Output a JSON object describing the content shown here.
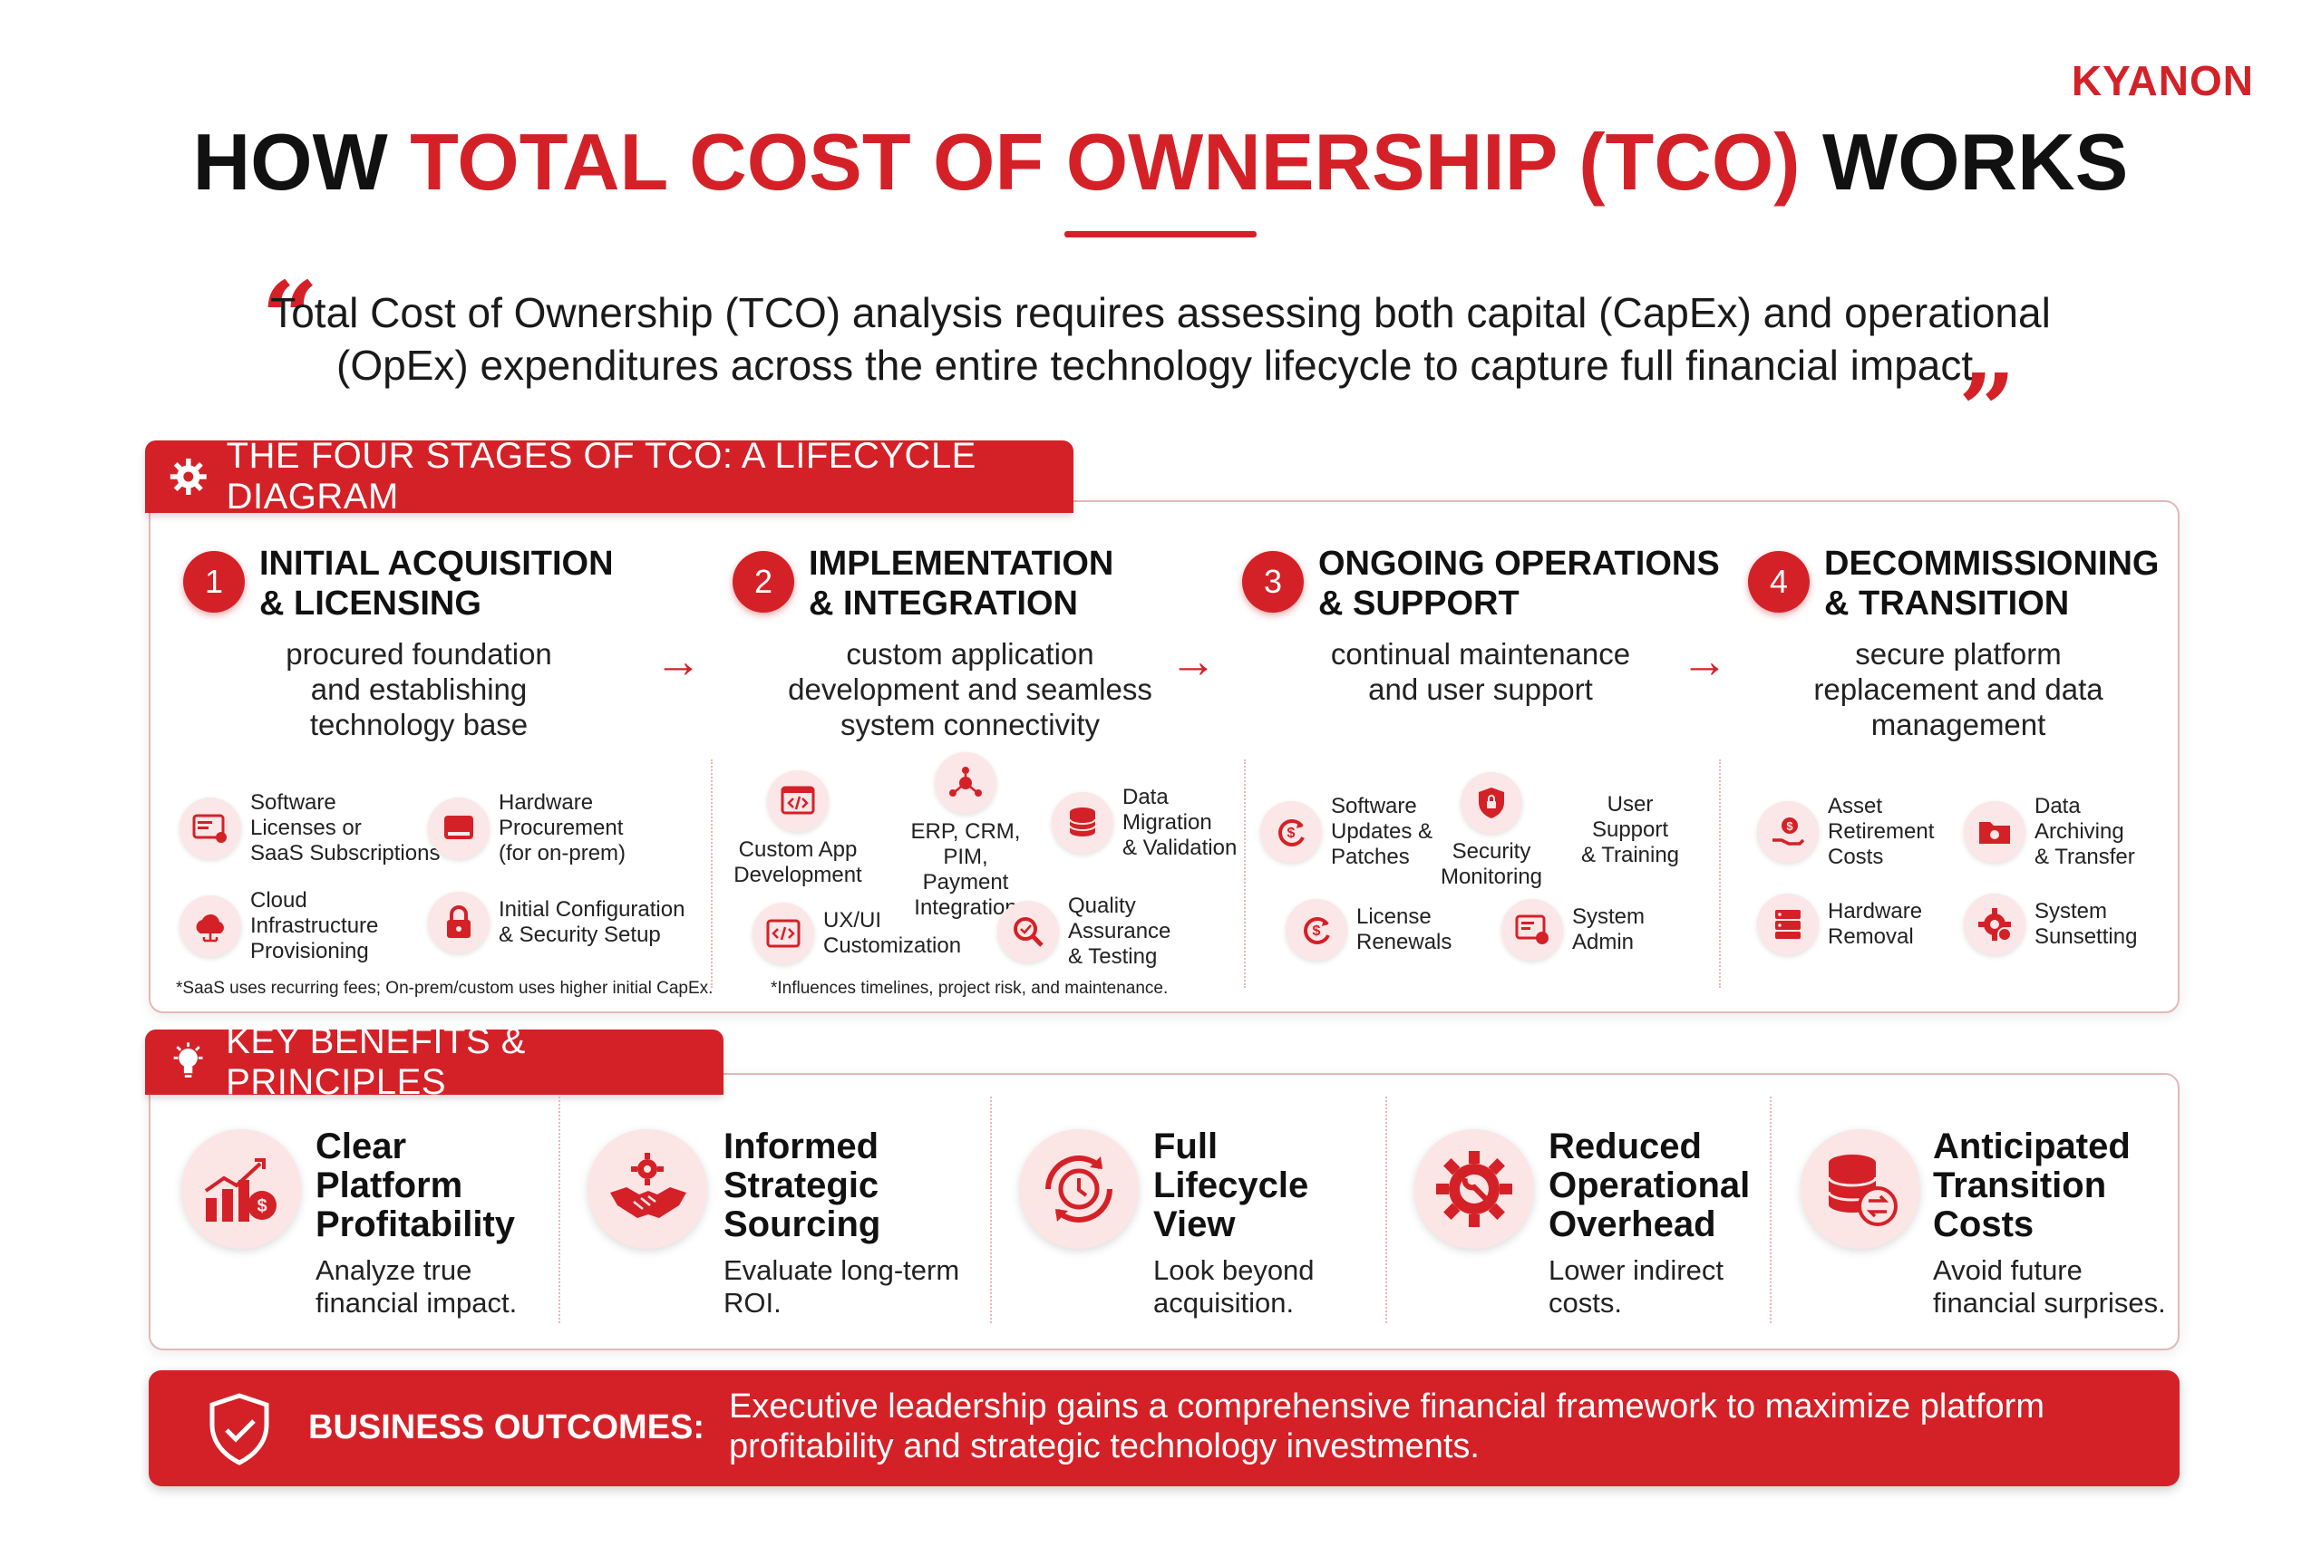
{
  "logo": "KYANON",
  "title": {
    "part1": "HOW ",
    "highlight": "TOTAL COST OF OWNERSHIP (TCO)",
    "part2": " WORKS"
  },
  "quote": "Total Cost of Ownership (TCO) analysis requires assessing both capital (CapEx) and operational (OpEx) expenditures across the entire technology lifecycle to capture full financial impact.",
  "lifecycle": {
    "heading": "THE FOUR STAGES OF TCO: A LIFECYCLE DIAGRAM",
    "stages": [
      {
        "number": "1",
        "title": "INITIAL ACQUISITION\n& LICENSING",
        "desc": "procured foundation\nand establishing\ntechnology base",
        "items": [
          {
            "icon": "license-icon",
            "label": "Software\nLicenses or\nSaaS Subscriptions"
          },
          {
            "icon": "hardware-icon",
            "label": "Hardware\nProcurement\n(for on-prem)"
          },
          {
            "icon": "cloud-icon",
            "label": "Cloud\nInfrastructure\nProvisioning"
          },
          {
            "icon": "lock-icon",
            "label": "Initial Configuration\n& Security Setup"
          }
        ],
        "note": "*SaaS uses recurring fees; On-prem/custom uses higher initial CapEx."
      },
      {
        "number": "2",
        "title": "IMPLEMENTATION\n& INTEGRATION",
        "desc": "custom application\ndevelopment and seamless\nsystem connectivity",
        "items": [
          {
            "icon": "code-icon",
            "label": "Custom App\nDevelopment"
          },
          {
            "icon": "network-icon",
            "label": "ERP, CRM,\nPIM, Payment\nIntegration"
          },
          {
            "icon": "database-icon",
            "label": "Data\nMigration\n& Validation"
          },
          {
            "icon": "ui-icon",
            "label": "UX/UI\nCustomization"
          },
          {
            "icon": "magnifier-icon",
            "label": "Quality\nAssurance\n& Testing"
          }
        ],
        "note": "*Influences timelines, project risk, and maintenance."
      },
      {
        "number": "3",
        "title": "ONGOING OPERATIONS\n& SUPPORT",
        "desc": "continual maintenance\nand user support",
        "items": [
          {
            "icon": "refresh-dollar-icon",
            "label": "Software\nUpdates &\nPatches"
          },
          {
            "icon": "shield-icon",
            "label": "Security\nMonitoring"
          },
          {
            "icon": "user-support-icon",
            "label": "User\nSupport\n& Training"
          },
          {
            "icon": "renewal-icon",
            "label": "License\nRenewals"
          },
          {
            "icon": "admin-icon",
            "label": "System\nAdmin"
          }
        ]
      },
      {
        "number": "4",
        "title": "DECOMMISSIONING\n& TRANSITION",
        "desc": "secure platform\nreplacement and data\nmanagement",
        "items": [
          {
            "icon": "asset-hand-icon",
            "label": "Asset\nRetirement\nCosts"
          },
          {
            "icon": "folder-icon",
            "label": "Data\nArchiving\n& Transfer"
          },
          {
            "icon": "server-icon",
            "label": "Hardware\nRemoval"
          },
          {
            "icon": "gear-x-icon",
            "label": "System\nSunsetting"
          }
        ]
      }
    ]
  },
  "benefits": {
    "heading": "KEY BENEFITS & PRINCIPLES",
    "items": [
      {
        "icon": "profit-chart-icon",
        "title": "Clear\nPlatform\nProfitability",
        "desc": "Analyze true\nfinancial impact."
      },
      {
        "icon": "handshake-gear-icon",
        "title": "Informed\nStrategic\nSourcing",
        "desc": "Evaluate long-term\nROI."
      },
      {
        "icon": "lifecycle-clock-icon",
        "title": "Full\nLifecycle\nView",
        "desc": "Look beyond\nacquisition."
      },
      {
        "icon": "wrench-gear-icon",
        "title": "Reduced\nOperational\nOverhead",
        "desc": "Lower indirect\ncosts."
      },
      {
        "icon": "database-transfer-icon",
        "title": "Anticipated\nTransition\nCosts",
        "desc": "Avoid future\nfinancial surprises."
      }
    ]
  },
  "outcome": {
    "label": "BUSINESS OUTCOMES:",
    "text": "Executive leadership gains a comprehensive financial framework to maximize platform profitability and strategic technology investments."
  },
  "colors": {
    "accent": "#d42127",
    "tint": "#fbe7e7",
    "border": "#e5b8b8"
  }
}
